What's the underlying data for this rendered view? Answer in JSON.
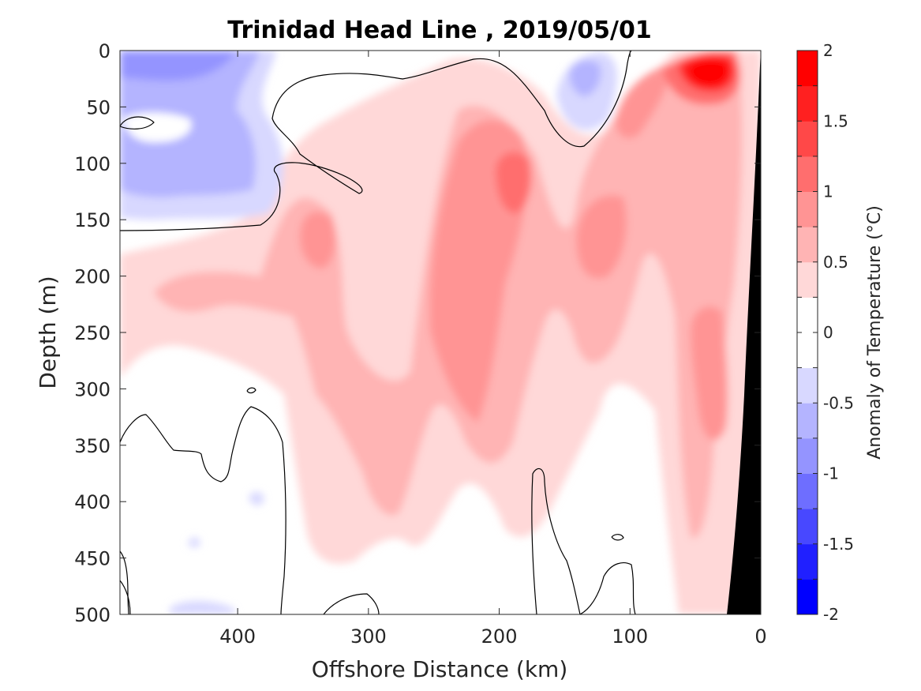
{
  "chart_data": {
    "type": "heatmap",
    "title": "Trinidad Head Line , 2019/05/01",
    "xlabel": "Offshore Distance (km)",
    "ylabel": "Depth (m)",
    "xlim": [
      490,
      0
    ],
    "ylim": [
      0,
      500
    ],
    "x_reversed": true,
    "y_reversed": true,
    "x_ticks": [
      400,
      300,
      200,
      100,
      0
    ],
    "x_tick_labels": [
      "400",
      "300",
      "200",
      "100",
      "0"
    ],
    "y_ticks": [
      0,
      50,
      100,
      150,
      200,
      250,
      300,
      350,
      400,
      450,
      500
    ],
    "y_tick_labels": [
      "0",
      "50",
      "100",
      "150",
      "200",
      "250",
      "300",
      "350",
      "400",
      "450",
      "500"
    ],
    "colorbar": {
      "label": "Anomaly of Temperature (°C)",
      "range": [
        -2,
        2
      ],
      "step": 0.25,
      "ticks": [
        2,
        1.5,
        1,
        0.5,
        0,
        -0.5,
        -1,
        -1.5,
        -2
      ],
      "tick_labels": [
        "2",
        "1.5",
        "1",
        "0.5",
        "0",
        "-0.5",
        "-1",
        "-1.5",
        "-2"
      ],
      "colors": [
        "#0000ff",
        "#2020ff",
        "#4848ff",
        "#6e6eff",
        "#9494ff",
        "#b4b4ff",
        "#d8d8ff",
        "#ffffff",
        "#ffffff",
        "#ffd8d8",
        "#ffb4b4",
        "#ff9494",
        "#ff6e6e",
        "#ff4848",
        "#ff2020",
        "#ff0000"
      ]
    },
    "land_color": "#000000",
    "contour_level": 0,
    "features": [
      {
        "x": 35,
        "depth": 25,
        "anomaly": 1.9
      },
      {
        "x": 440,
        "depth": 25,
        "anomaly": -0.8
      },
      {
        "x": 135,
        "depth": 30,
        "anomaly": -0.6
      },
      {
        "x": 420,
        "depth": 120,
        "anomaly": -0.6
      },
      {
        "x": 200,
        "depth": 130,
        "anomaly": 1.1
      },
      {
        "x": 220,
        "depth": 250,
        "anomaly": 0.8
      },
      {
        "x": 340,
        "depth": 170,
        "anomaly": 0.9
      },
      {
        "x": 40,
        "depth": 300,
        "anomaly": 0.9
      },
      {
        "x": 120,
        "depth": 200,
        "anomaly": 0.8
      },
      {
        "x": 300,
        "depth": 320,
        "anomaly": 0.6
      },
      {
        "x": 450,
        "depth": 460,
        "anomaly": -0.3
      }
    ]
  }
}
